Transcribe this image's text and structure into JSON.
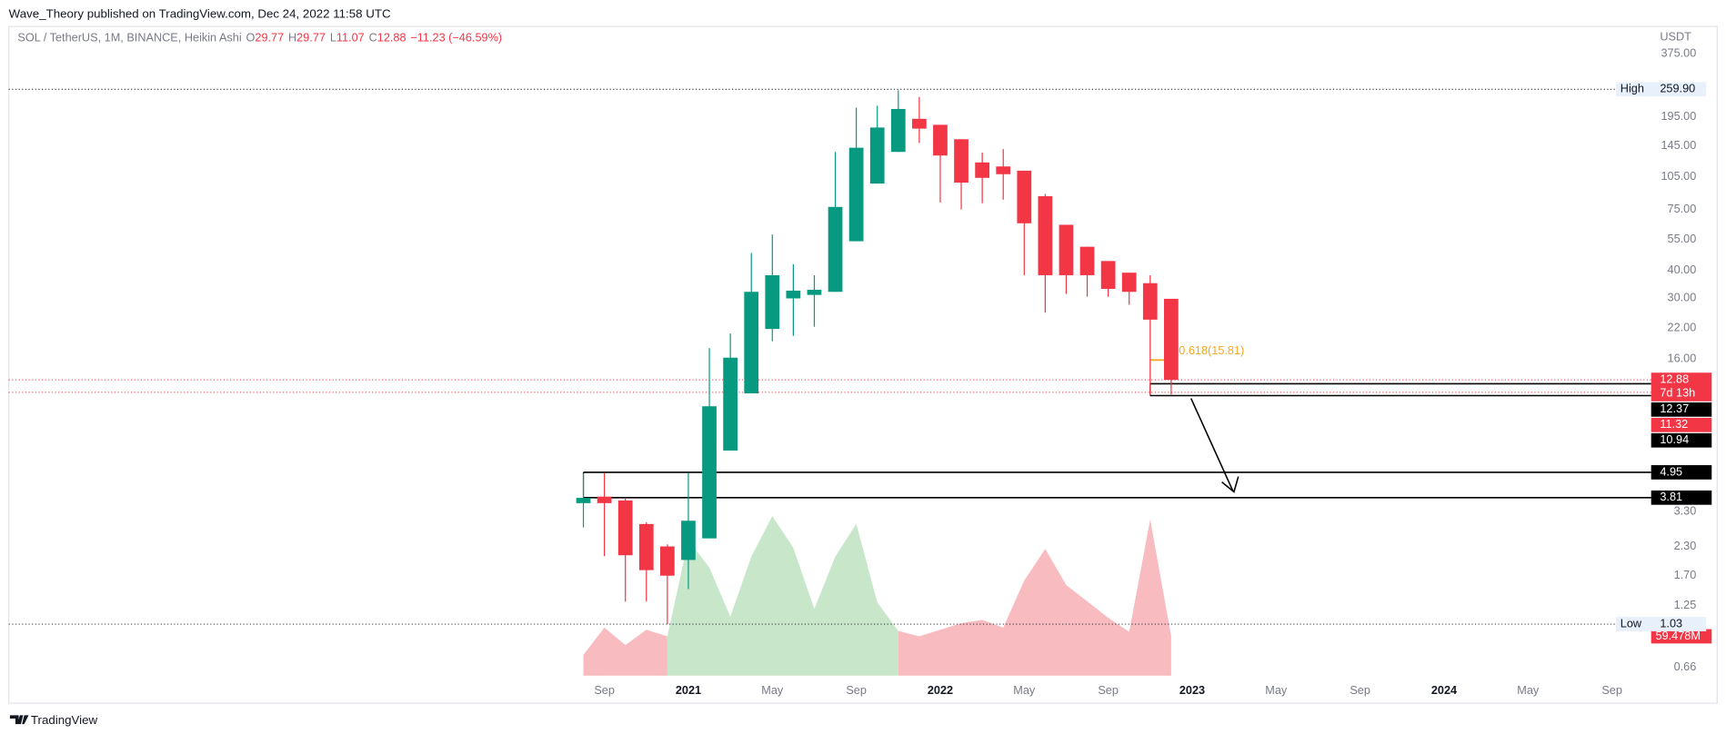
{
  "header": {
    "published": "Wave_Theory published on TradingView.com, Dec 24, 2022 11:58 UTC"
  },
  "footer": {
    "brand": "TradingView"
  },
  "chart_data": {
    "type": "candlestick",
    "title": "SOL / TetherUS, 1M, BINANCE, Heikin Ashi",
    "legend": [
      {
        "key": "O",
        "value": 29.77
      },
      {
        "key": "H",
        "value": 29.77
      },
      {
        "key": "L",
        "value": 11.07
      },
      {
        "key": "C",
        "value": 12.88
      }
    ],
    "change": "−11.23 (−46.59%)",
    "y_unit": "USDT",
    "log_scale": true,
    "up_color": "#089981",
    "down_color": "#f23645",
    "x": [
      "2020-08",
      "2020-09",
      "2020-10",
      "2020-11",
      "2020-12",
      "2021-01",
      "2021-02",
      "2021-03",
      "2021-04",
      "2021-05",
      "2021-06",
      "2021-07",
      "2021-08",
      "2021-09",
      "2021-10",
      "2021-11",
      "2021-12",
      "2022-01",
      "2022-02",
      "2022-03",
      "2022-04",
      "2022-05",
      "2022-06",
      "2022-07",
      "2022-08",
      "2022-09",
      "2022-10",
      "2022-11",
      "2022-12"
    ],
    "open": [
      3.6,
      3.85,
      3.7,
      2.9,
      2.3,
      2.0,
      2.5,
      6.2,
      11.2,
      21.8,
      29.9,
      31,
      32,
      54,
      98,
      136,
      191.5,
      180,
      155,
      122,
      117,
      112,
      86,
      64,
      51,
      44,
      39,
      35,
      29.77
    ],
    "high": [
      4.9,
      4.9,
      3.8,
      2.95,
      2.35,
      4.9,
      17.9,
      20.8,
      47.8,
      57.9,
      42.6,
      38,
      136,
      215,
      219,
      257,
      240,
      180,
      155,
      135,
      140,
      112,
      88,
      64,
      51,
      44,
      39,
      38,
      29.77
    ],
    "low": [
      2.8,
      2.08,
      1.3,
      1.3,
      1.03,
      1.48,
      2.5,
      6.2,
      11.2,
      19.2,
      20.3,
      22.3,
      32,
      54,
      98,
      136,
      149,
      80.6,
      75,
      80,
      83,
      38,
      25.8,
      31.3,
      30.4,
      30.4,
      28,
      11,
      11.07
    ],
    "close": [
      3.8,
      3.6,
      2.1,
      1.8,
      1.7,
      3.0,
      9.8,
      16.2,
      32,
      38,
      32.4,
      32.7,
      77,
      142,
      175,
      212,
      173,
      131,
      99,
      104,
      108,
      65,
      38,
      38,
      38,
      33,
      32,
      24,
      12.88
    ],
    "ylim": [
      0.46,
      465
    ],
    "yticks": [
      {
        "value": 375,
        "label": "375.00"
      },
      {
        "value": 195,
        "label": "195.00"
      },
      {
        "value": 145,
        "label": "145.00"
      },
      {
        "value": 105,
        "label": "105.00"
      },
      {
        "value": 75,
        "label": "75.00"
      },
      {
        "value": 55,
        "label": "55.00"
      },
      {
        "value": 40,
        "label": "40.00"
      },
      {
        "value": 30,
        "label": "30.00"
      },
      {
        "value": 22,
        "label": "22.00"
      },
      {
        "value": 16,
        "label": "16.00"
      },
      {
        "value": 3.3,
        "label": "3.30"
      },
      {
        "value": 2.3,
        "label": "2.30"
      },
      {
        "value": 1.7,
        "label": "1.70"
      },
      {
        "value": 1.25,
        "label": "1.25"
      },
      {
        "value": 0.66,
        "label": "0.66"
      }
    ],
    "xticks": [
      {
        "value": "2020-09",
        "label": "Sep"
      },
      {
        "value": "2021-01",
        "label": "2021"
      },
      {
        "value": "2021-05",
        "label": "May"
      },
      {
        "value": "2021-09",
        "label": "Sep"
      },
      {
        "value": "2022-01",
        "label": "2022"
      },
      {
        "value": "2022-05",
        "label": "May"
      },
      {
        "value": "2022-09",
        "label": "Sep"
      },
      {
        "value": "2023-01",
        "label": "2023"
      },
      {
        "value": "2023-05",
        "label": "May"
      },
      {
        "value": "2023-09",
        "label": "Sep"
      },
      {
        "value": "2024-01",
        "label": "2024"
      },
      {
        "value": "2024-05",
        "label": "May"
      },
      {
        "value": "2024-09",
        "label": "Sep"
      }
    ],
    "extremes": [
      {
        "name": "High",
        "value": 259.9,
        "value_label": "259.90"
      },
      {
        "name": "Low",
        "value": 1.03
      }
    ],
    "markers": [
      {
        "value": 12.88,
        "color": "#f23645",
        "countdown": "7d 13h",
        "dotted": true
      },
      {
        "value": 12.37,
        "color": "#000000"
      },
      {
        "value": 11.32,
        "color": "#f23645",
        "dotted": true
      },
      {
        "value": 10.94,
        "color": "#000000"
      },
      {
        "value": 4.95,
        "color": "#000000"
      },
      {
        "value": 3.81,
        "color": "#000000"
      }
    ],
    "zones": [
      {
        "top": 12.37,
        "bottom": 10.94
      },
      {
        "top": 4.95,
        "bottom": 3.81
      }
    ],
    "fib": {
      "label": "0.618(15.81)",
      "value": 15.81,
      "color": "#f5a623"
    },
    "volume": {
      "values": [
        31.4,
        72.7,
        46.3,
        69.4,
        59.5,
        204.8,
        163.5,
        89.2,
        180.1,
        241.2,
        193.3,
        100.8,
        180.1,
        229.6,
        110.7,
        67.7,
        59.5,
        69.4,
        79.3,
        84.3,
        72.7,
        143.7,
        191.6,
        137.1,
        112.3,
        87.6,
        66.1,
        236.2,
        59.478
      ],
      "colors": [
        "#f8bbc0",
        "#f8bbc0",
        "#f8bbc0",
        "#f8bbc0",
        "#f8bbc0",
        "#c8e6c9",
        "#c8e6c9",
        "#c8e6c9",
        "#c8e6c9",
        "#c8e6c9",
        "#c8e6c9",
        "#c8e6c9",
        "#c8e6c9",
        "#c8e6c9",
        "#c8e6c9",
        "#c8e6c9",
        "#f8bbc0",
        "#f8bbc0",
        "#f8bbc0",
        "#f8bbc0",
        "#f8bbc0",
        "#f8bbc0",
        "#f8bbc0",
        "#f8bbc0",
        "#f8bbc0",
        "#f8bbc0",
        "#f8bbc0",
        "#f8bbc0",
        "#f8bbc0"
      ],
      "last_label": "59.478M",
      "label_color": "#f23645"
    }
  }
}
